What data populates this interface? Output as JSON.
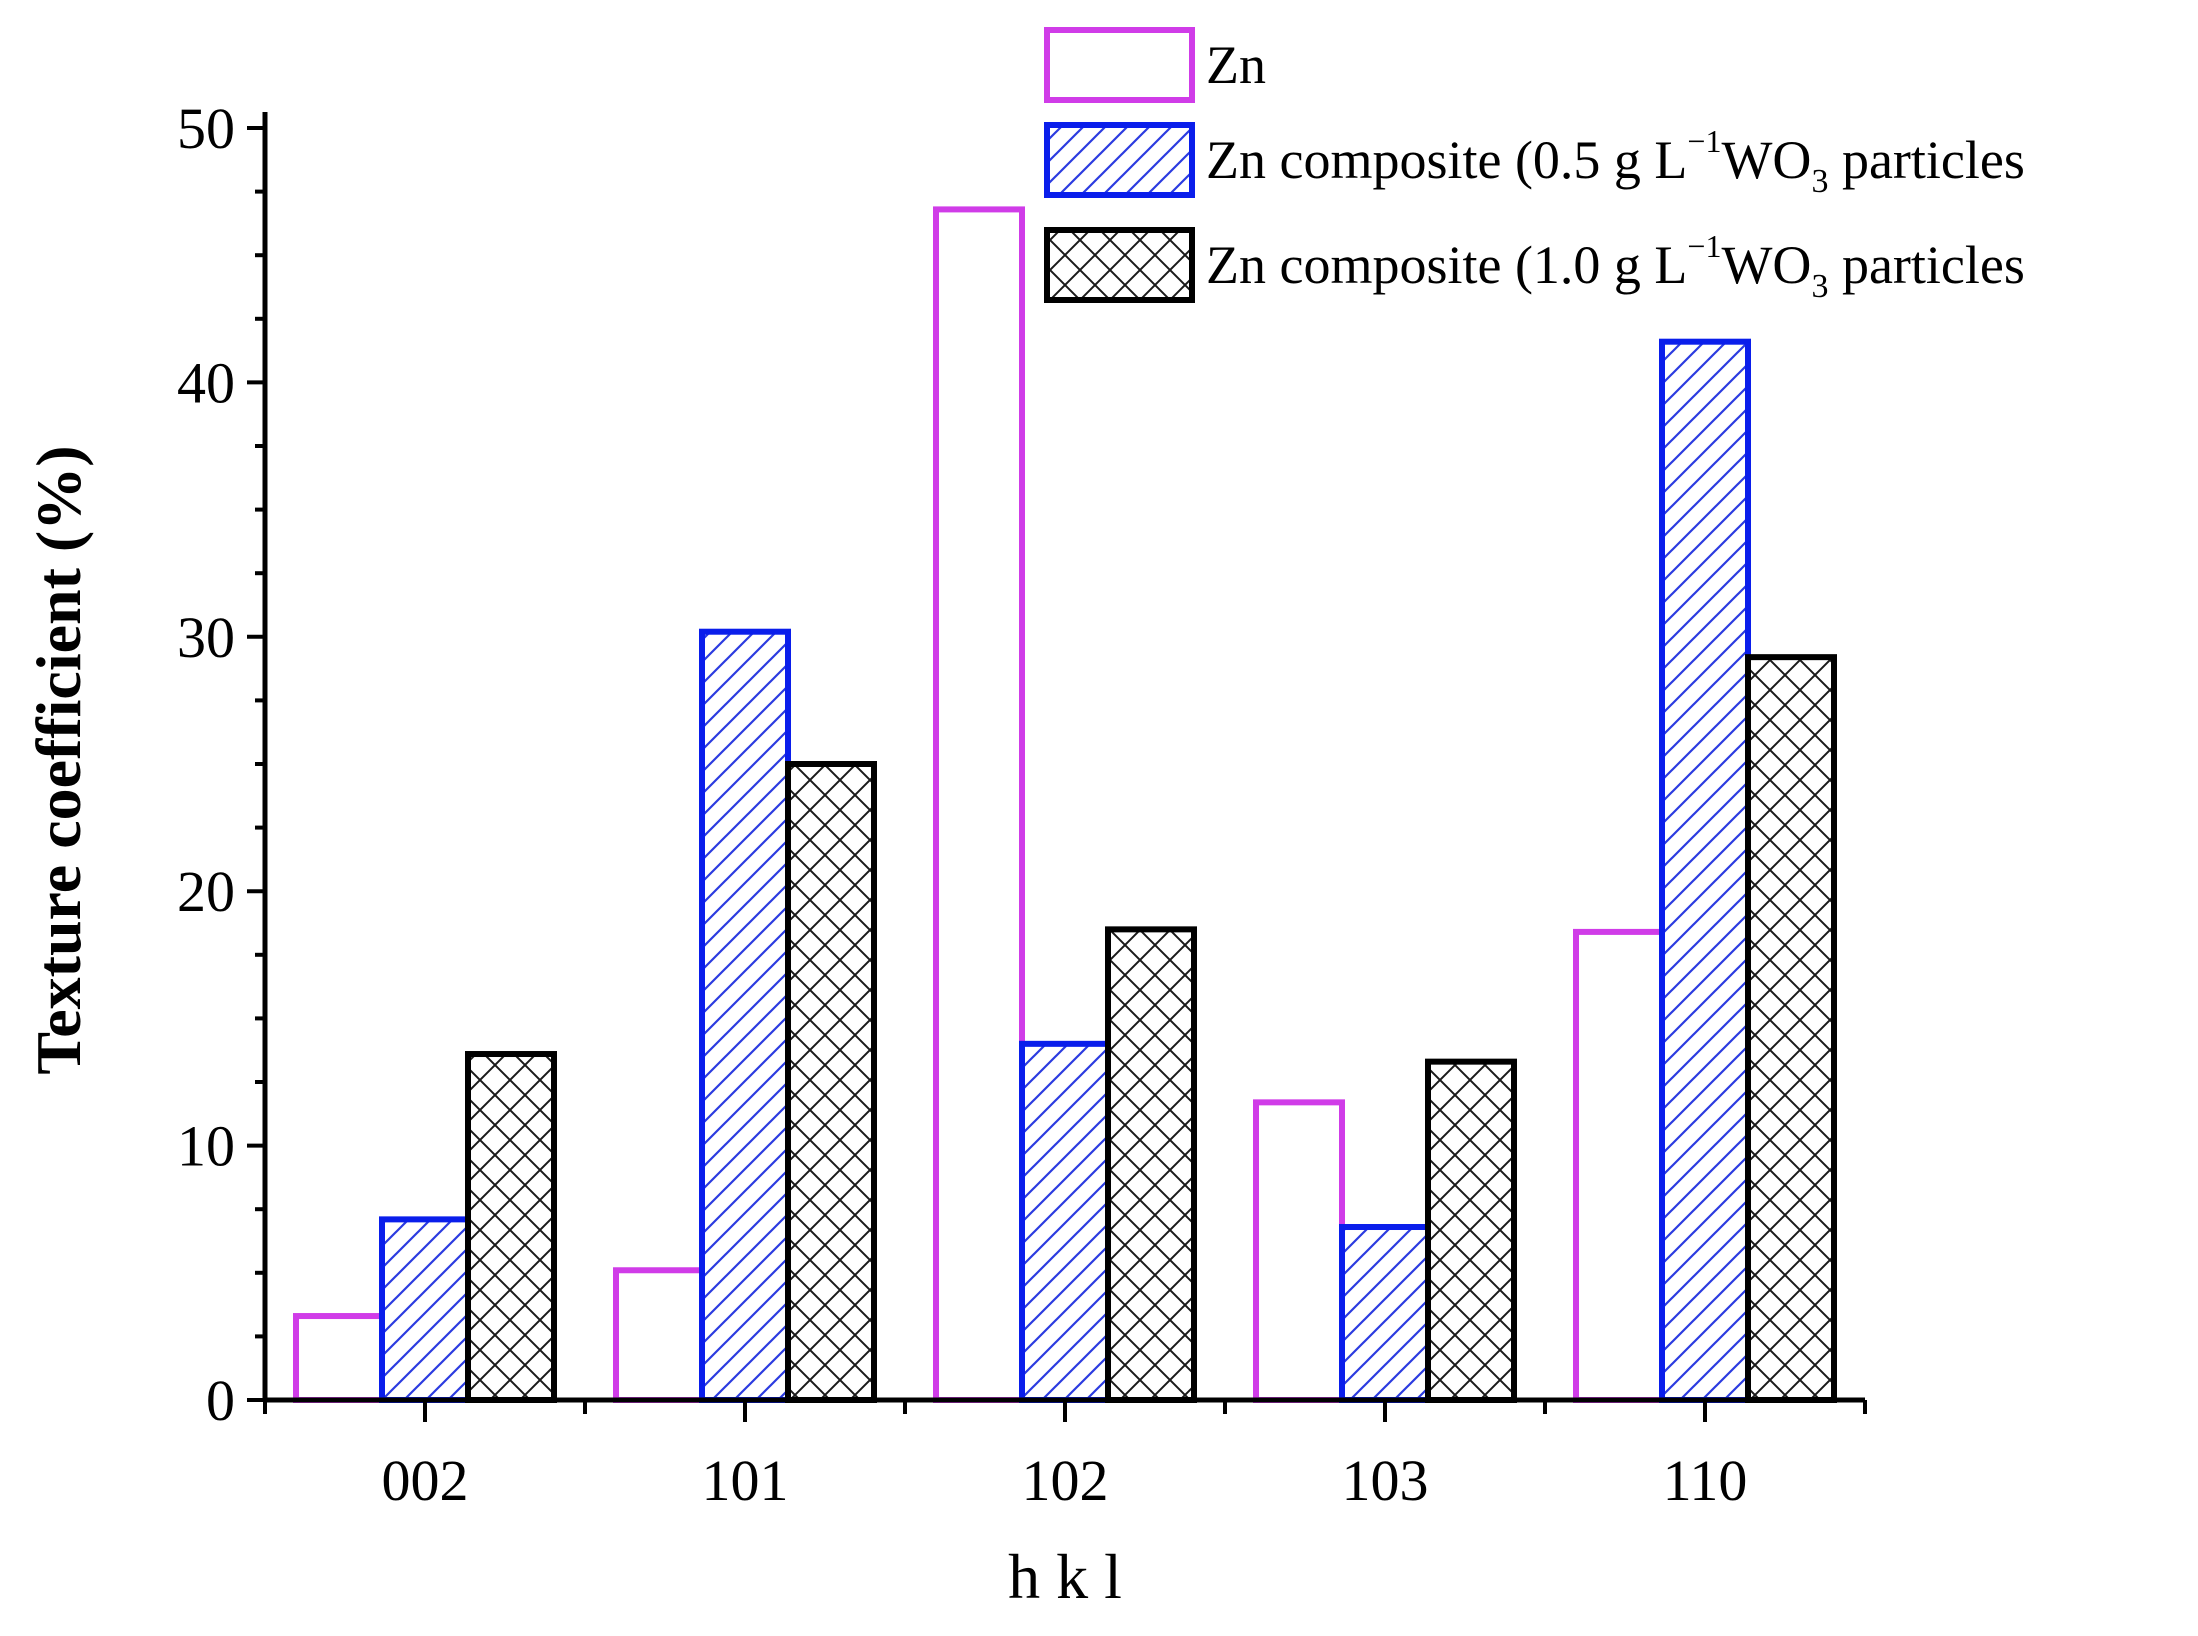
{
  "chart_data": {
    "type": "bar",
    "title": "",
    "xlabel": "h k l",
    "ylabel": "Texture coefficient (%)",
    "categories": [
      "002",
      "101",
      "102",
      "103",
      "110"
    ],
    "ylim": [
      0,
      50
    ],
    "yticks": [
      0,
      10,
      20,
      30,
      40,
      50
    ],
    "ytick_labels": [
      "0",
      "10",
      "20",
      "30",
      "40",
      "50"
    ],
    "legend_position": "top-right",
    "series": [
      {
        "name": "Zn",
        "legend": {
          "pre": "Zn",
          "sup": "",
          "mid": "",
          "sub": "",
          "post": ""
        },
        "color": "#d03ce8",
        "pattern": "none",
        "values": [
          3.3,
          5.1,
          46.8,
          11.7,
          18.4
        ]
      },
      {
        "name": "Zn composite (0.5 g L-1WO3 particles",
        "legend": {
          "pre": "Zn composite (0.5 g L",
          "sup": "−1",
          "mid": "WO",
          "sub": "3",
          "post": " particles"
        },
        "color": "#0a1eeb",
        "pattern": "diagonal",
        "values": [
          7.1,
          30.2,
          14.0,
          6.8,
          41.6
        ]
      },
      {
        "name": "Zn composite (1.0 g L-1WO3 particles",
        "legend": {
          "pre": "Zn composite (1.0 g L",
          "sup": "−1",
          "mid": "WO",
          "sub": "3",
          "post": " particles"
        },
        "color": "#000000",
        "pattern": "crosshatch",
        "values": [
          13.6,
          25.0,
          18.5,
          13.3,
          29.2
        ]
      }
    ]
  }
}
